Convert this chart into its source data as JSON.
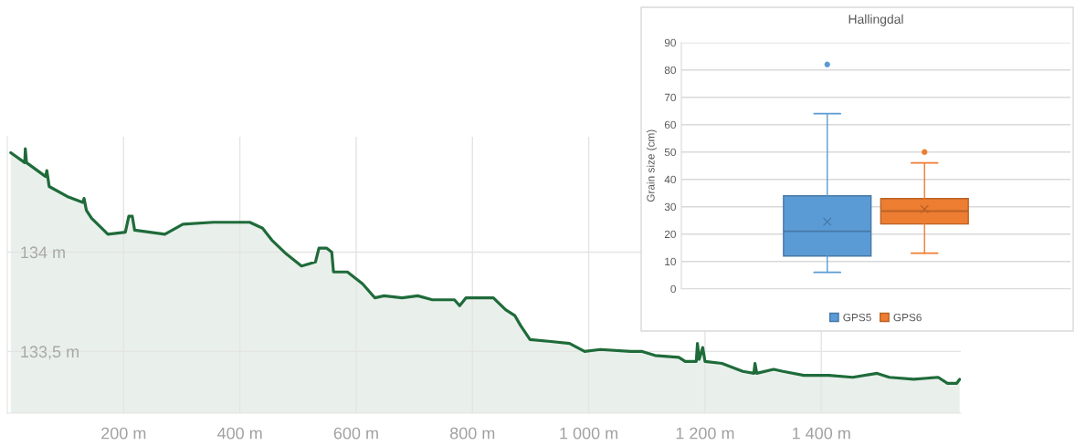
{
  "chart_data": [
    {
      "type": "area",
      "color": "#1f6b3a",
      "x": [
        6,
        30,
        31,
        33,
        66,
        68,
        72,
        103,
        130,
        132,
        136,
        145,
        173,
        203,
        209,
        215,
        219,
        271,
        302,
        354,
        417,
        439,
        455,
        480,
        506,
        530,
        536,
        549,
        558,
        561,
        585,
        611,
        632,
        648,
        679,
        706,
        731,
        769,
        778,
        789,
        836,
        857,
        873,
        883,
        899,
        935,
        967,
        993,
        1020,
        1072,
        1092,
        1114,
        1155,
        1166,
        1185,
        1187,
        1190,
        1196,
        1200,
        1229,
        1265,
        1284,
        1286,
        1289,
        1318,
        1334,
        1370,
        1413,
        1454,
        1496,
        1517,
        1559,
        1601,
        1617,
        1633,
        1638
      ],
      "values": [
        134.5,
        134.45,
        134.52,
        134.45,
        134.38,
        134.41,
        134.33,
        134.28,
        134.25,
        134.27,
        134.21,
        134.17,
        134.09,
        134.1,
        134.18,
        134.18,
        134.11,
        134.09,
        134.14,
        134.15,
        134.15,
        134.12,
        134.06,
        133.99,
        133.93,
        133.95,
        134.02,
        134.02,
        134.0,
        133.9,
        133.9,
        133.84,
        133.77,
        133.78,
        133.77,
        133.78,
        133.76,
        133.76,
        133.73,
        133.77,
        133.77,
        133.71,
        133.68,
        133.63,
        133.56,
        133.55,
        133.54,
        133.5,
        133.51,
        133.5,
        133.5,
        133.48,
        133.47,
        133.45,
        133.45,
        133.54,
        133.46,
        133.52,
        133.45,
        133.44,
        133.4,
        133.39,
        133.44,
        133.39,
        133.41,
        133.4,
        133.38,
        133.38,
        133.37,
        133.39,
        133.37,
        133.36,
        133.37,
        133.34,
        133.34,
        133.36
      ],
      "xlim": [
        0,
        1640
      ],
      "ylim": [
        133.19,
        134.58
      ],
      "xticks": [
        {
          "value": 200,
          "label": "200 m"
        },
        {
          "value": 400,
          "label": "400 m"
        },
        {
          "value": 600,
          "label": "600 m"
        },
        {
          "value": 800,
          "label": "800 m"
        },
        {
          "value": 1000,
          "label": "1 000 m"
        },
        {
          "value": 1200,
          "label": "1 200 m"
        },
        {
          "value": 1400,
          "label": "1 400 m"
        }
      ],
      "yticks": [
        {
          "value": 133.5,
          "label": "133,5 m"
        },
        {
          "value": 134,
          "label": "134 m"
        }
      ],
      "grid": true
    },
    {
      "type": "box",
      "title": "Hallingdal",
      "ylabel": "Grain size (cm)",
      "categories": [
        null
      ],
      "series": [
        {
          "name": "GPS5",
          "color": "#5b9bd5",
          "boxes": [
            {
              "low": 6,
              "q1": 12,
              "median": 21,
              "q3": 34,
              "high": 64,
              "mean": 24.5,
              "outliers": [
                82
              ]
            }
          ]
        },
        {
          "name": "GPS6",
          "color": "#ed7d31",
          "boxes": [
            {
              "low": 13,
              "q1": 23.7,
              "median": 28.4,
              "q3": 33,
              "high": 46,
              "mean": 29.1,
              "outliers": [
                50
              ]
            }
          ]
        }
      ],
      "ylim": [
        0,
        90
      ],
      "yticks": [
        0,
        10,
        20,
        30,
        40,
        50,
        60,
        70,
        80,
        90
      ],
      "grid": "y",
      "legend": "bottom",
      "tick_labels": "y"
    }
  ]
}
